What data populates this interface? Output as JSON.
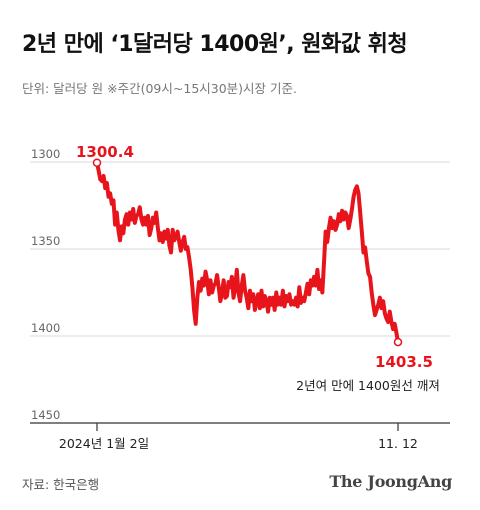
{
  "header": {
    "title": "2년 만에 ‘1달러당 1400원’, 원화값 휘청",
    "subtitle": "단위: 달러당 원   ※주간(09시~15시30분)시장 기준."
  },
  "footer": {
    "source": "자료: 한국은행",
    "brand": "The JoongAng"
  },
  "colors": {
    "line": "#e8141c",
    "grid": "#d9d9d9",
    "axis": "#333333",
    "label_red": "#e8141c"
  },
  "chart_data": {
    "type": "line",
    "title": "2년 만에 ‘1달러당 1400원’, 원화값 휘청",
    "ylabel": "",
    "xlabel": "",
    "y_inverted": true,
    "ylim": [
      1300,
      1450
    ],
    "yticks": [
      1300,
      1350,
      1400,
      1450
    ],
    "x_tick_labels": [
      "2024년 1월 2일",
      "11. 12"
    ],
    "series": [
      {
        "values": [
          1300.4,
          1305,
          1310,
          1311,
          1308,
          1315,
          1312,
          1320,
          1318,
          1324,
          1322,
          1336,
          1329,
          1339,
          1345,
          1337,
          1341,
          1333,
          1330,
          1336,
          1329,
          1333,
          1327,
          1335,
          1331,
          1330,
          1326,
          1333,
          1336,
          1332,
          1336,
          1331,
          1342,
          1338,
          1332,
          1335,
          1329,
          1338,
          1345,
          1341,
          1346,
          1340,
          1344,
          1339,
          1348,
          1352,
          1339,
          1345,
          1343,
          1340,
          1346,
          1351,
          1346,
          1343,
          1350,
          1349,
          1355,
          1362,
          1372,
          1385,
          1393,
          1378,
          1369,
          1374,
          1367,
          1371,
          1363,
          1368,
          1376,
          1368,
          1375,
          1371,
          1370,
          1365,
          1372,
          1380,
          1375,
          1368,
          1378,
          1377,
          1369,
          1372,
          1366,
          1378,
          1372,
          1362,
          1375,
          1380,
          1371,
          1365,
          1374,
          1378,
          1384,
          1374,
          1380,
          1376,
          1385,
          1380,
          1376,
          1384,
          1374,
          1383,
          1377,
          1380,
          1386,
          1378,
          1382,
          1378,
          1385,
          1375,
          1382,
          1378,
          1382,
          1374,
          1383,
          1377,
          1380,
          1376,
          1382,
          1380,
          1382,
          1378,
          1383,
          1372,
          1381,
          1378,
          1380,
          1375,
          1370,
          1376,
          1368,
          1371,
          1366,
          1371,
          1362,
          1373,
          1368,
          1375,
          1358,
          1340,
          1346,
          1338,
          1332,
          1338,
          1334,
          1339,
          1336,
          1330,
          1334,
          1328,
          1333,
          1329,
          1331,
          1338,
          1333,
          1327,
          1320,
          1316,
          1314,
          1318,
          1329,
          1340,
          1352,
          1349,
          1357,
          1364,
          1366,
          1375,
          1382,
          1388,
          1385,
          1382,
          1378,
          1384,
          1380,
          1387,
          1390,
          1392,
          1386,
          1392,
          1396,
          1393,
          1398,
          1403.5
        ]
      }
    ],
    "annotations": {
      "start_label": "1300.4",
      "end_label": "1403.5",
      "end_note": "2년여 만에 1400원선 깨져"
    }
  }
}
